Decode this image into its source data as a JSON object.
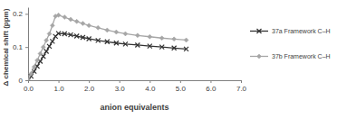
{
  "chart_data": {
    "type": "line",
    "y_label": "Δ chemical shift (ppm)",
    "x_label": "anion equivalents",
    "x": [
      0,
      0.1,
      0.2,
      0.3,
      0.4,
      0.5,
      0.6,
      0.7,
      0.8,
      0.9,
      1.0,
      1.2,
      1.4,
      1.6,
      1.8,
      2.0,
      2.3,
      2.6,
      2.9,
      3.2,
      3.6,
      4.0,
      4.4,
      4.8,
      5.2
    ],
    "series": [
      {
        "name": "37a Framework C–H",
        "color": "#333333",
        "marker": "x",
        "values": [
          0,
          0.012,
          0.027,
          0.042,
          0.057,
          0.072,
          0.087,
          0.102,
          0.117,
          0.132,
          0.141,
          0.14,
          0.137,
          0.133,
          0.129,
          0.125,
          0.12,
          0.116,
          0.112,
          0.109,
          0.106,
          0.103,
          0.1,
          0.097,
          0.094
        ]
      },
      {
        "name": "37b Framework C–H",
        "color": "#a6a6a6",
        "marker": "diamond",
        "values": [
          0,
          0.02,
          0.04,
          0.06,
          0.08,
          0.1,
          0.12,
          0.14,
          0.165,
          0.193,
          0.196,
          0.19,
          0.183,
          0.177,
          0.171,
          0.165,
          0.158,
          0.151,
          0.145,
          0.14,
          0.135,
          0.131,
          0.127,
          0.124,
          0.121
        ]
      }
    ],
    "xlim": [
      0,
      7
    ],
    "xticks": [
      {
        "value": 0,
        "label": "0.0"
      },
      {
        "value": 1,
        "label": "1.0"
      },
      {
        "value": 2,
        "label": "2.0"
      },
      {
        "value": 3,
        "label": "3.0"
      },
      {
        "value": 4,
        "label": "4.0"
      },
      {
        "value": 5,
        "label": "5.0"
      },
      {
        "value": 6,
        "label": "6.0"
      },
      {
        "value": 7,
        "label": "7.0"
      }
    ],
    "ylim": [
      0,
      0.22
    ],
    "yticks": [
      0,
      0.1,
      0.2
    ],
    "grid": false,
    "legend": "right"
  }
}
